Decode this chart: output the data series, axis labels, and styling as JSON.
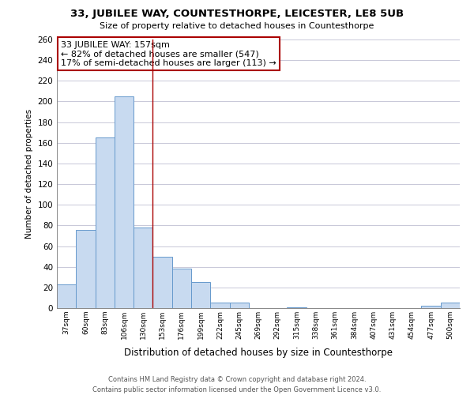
{
  "title": "33, JUBILEE WAY, COUNTESTHORPE, LEICESTER, LE8 5UB",
  "subtitle": "Size of property relative to detached houses in Countesthorpe",
  "xlabel": "Distribution of detached houses by size in Countesthorpe",
  "ylabel": "Number of detached properties",
  "bar_labels": [
    "37sqm",
    "60sqm",
    "83sqm",
    "106sqm",
    "130sqm",
    "153sqm",
    "176sqm",
    "199sqm",
    "222sqm",
    "245sqm",
    "269sqm",
    "292sqm",
    "315sqm",
    "338sqm",
    "361sqm",
    "384sqm",
    "407sqm",
    "431sqm",
    "454sqm",
    "477sqm",
    "500sqm"
  ],
  "bar_values": [
    23,
    76,
    165,
    205,
    78,
    50,
    38,
    25,
    5,
    5,
    0,
    0,
    1,
    0,
    0,
    0,
    0,
    0,
    0,
    2,
    5
  ],
  "bar_color": "#c8daf0",
  "bar_edge_color": "#6699cc",
  "ylim": [
    0,
    260
  ],
  "yticks": [
    0,
    20,
    40,
    60,
    80,
    100,
    120,
    140,
    160,
    180,
    200,
    220,
    240,
    260
  ],
  "vline_x": 4.5,
  "vline_color": "#aa0000",
  "annotation_title": "33 JUBILEE WAY: 157sqm",
  "annotation_line1": "← 82% of detached houses are smaller (547)",
  "annotation_line2": "17% of semi-detached houses are larger (113) →",
  "annotation_box_color": "#ffffff",
  "annotation_box_edge": "#aa0000",
  "footer_line1": "Contains HM Land Registry data © Crown copyright and database right 2024.",
  "footer_line2": "Contains public sector information licensed under the Open Government Licence v3.0.",
  "bg_color": "#ffffff",
  "grid_color": "#c8c8d8"
}
